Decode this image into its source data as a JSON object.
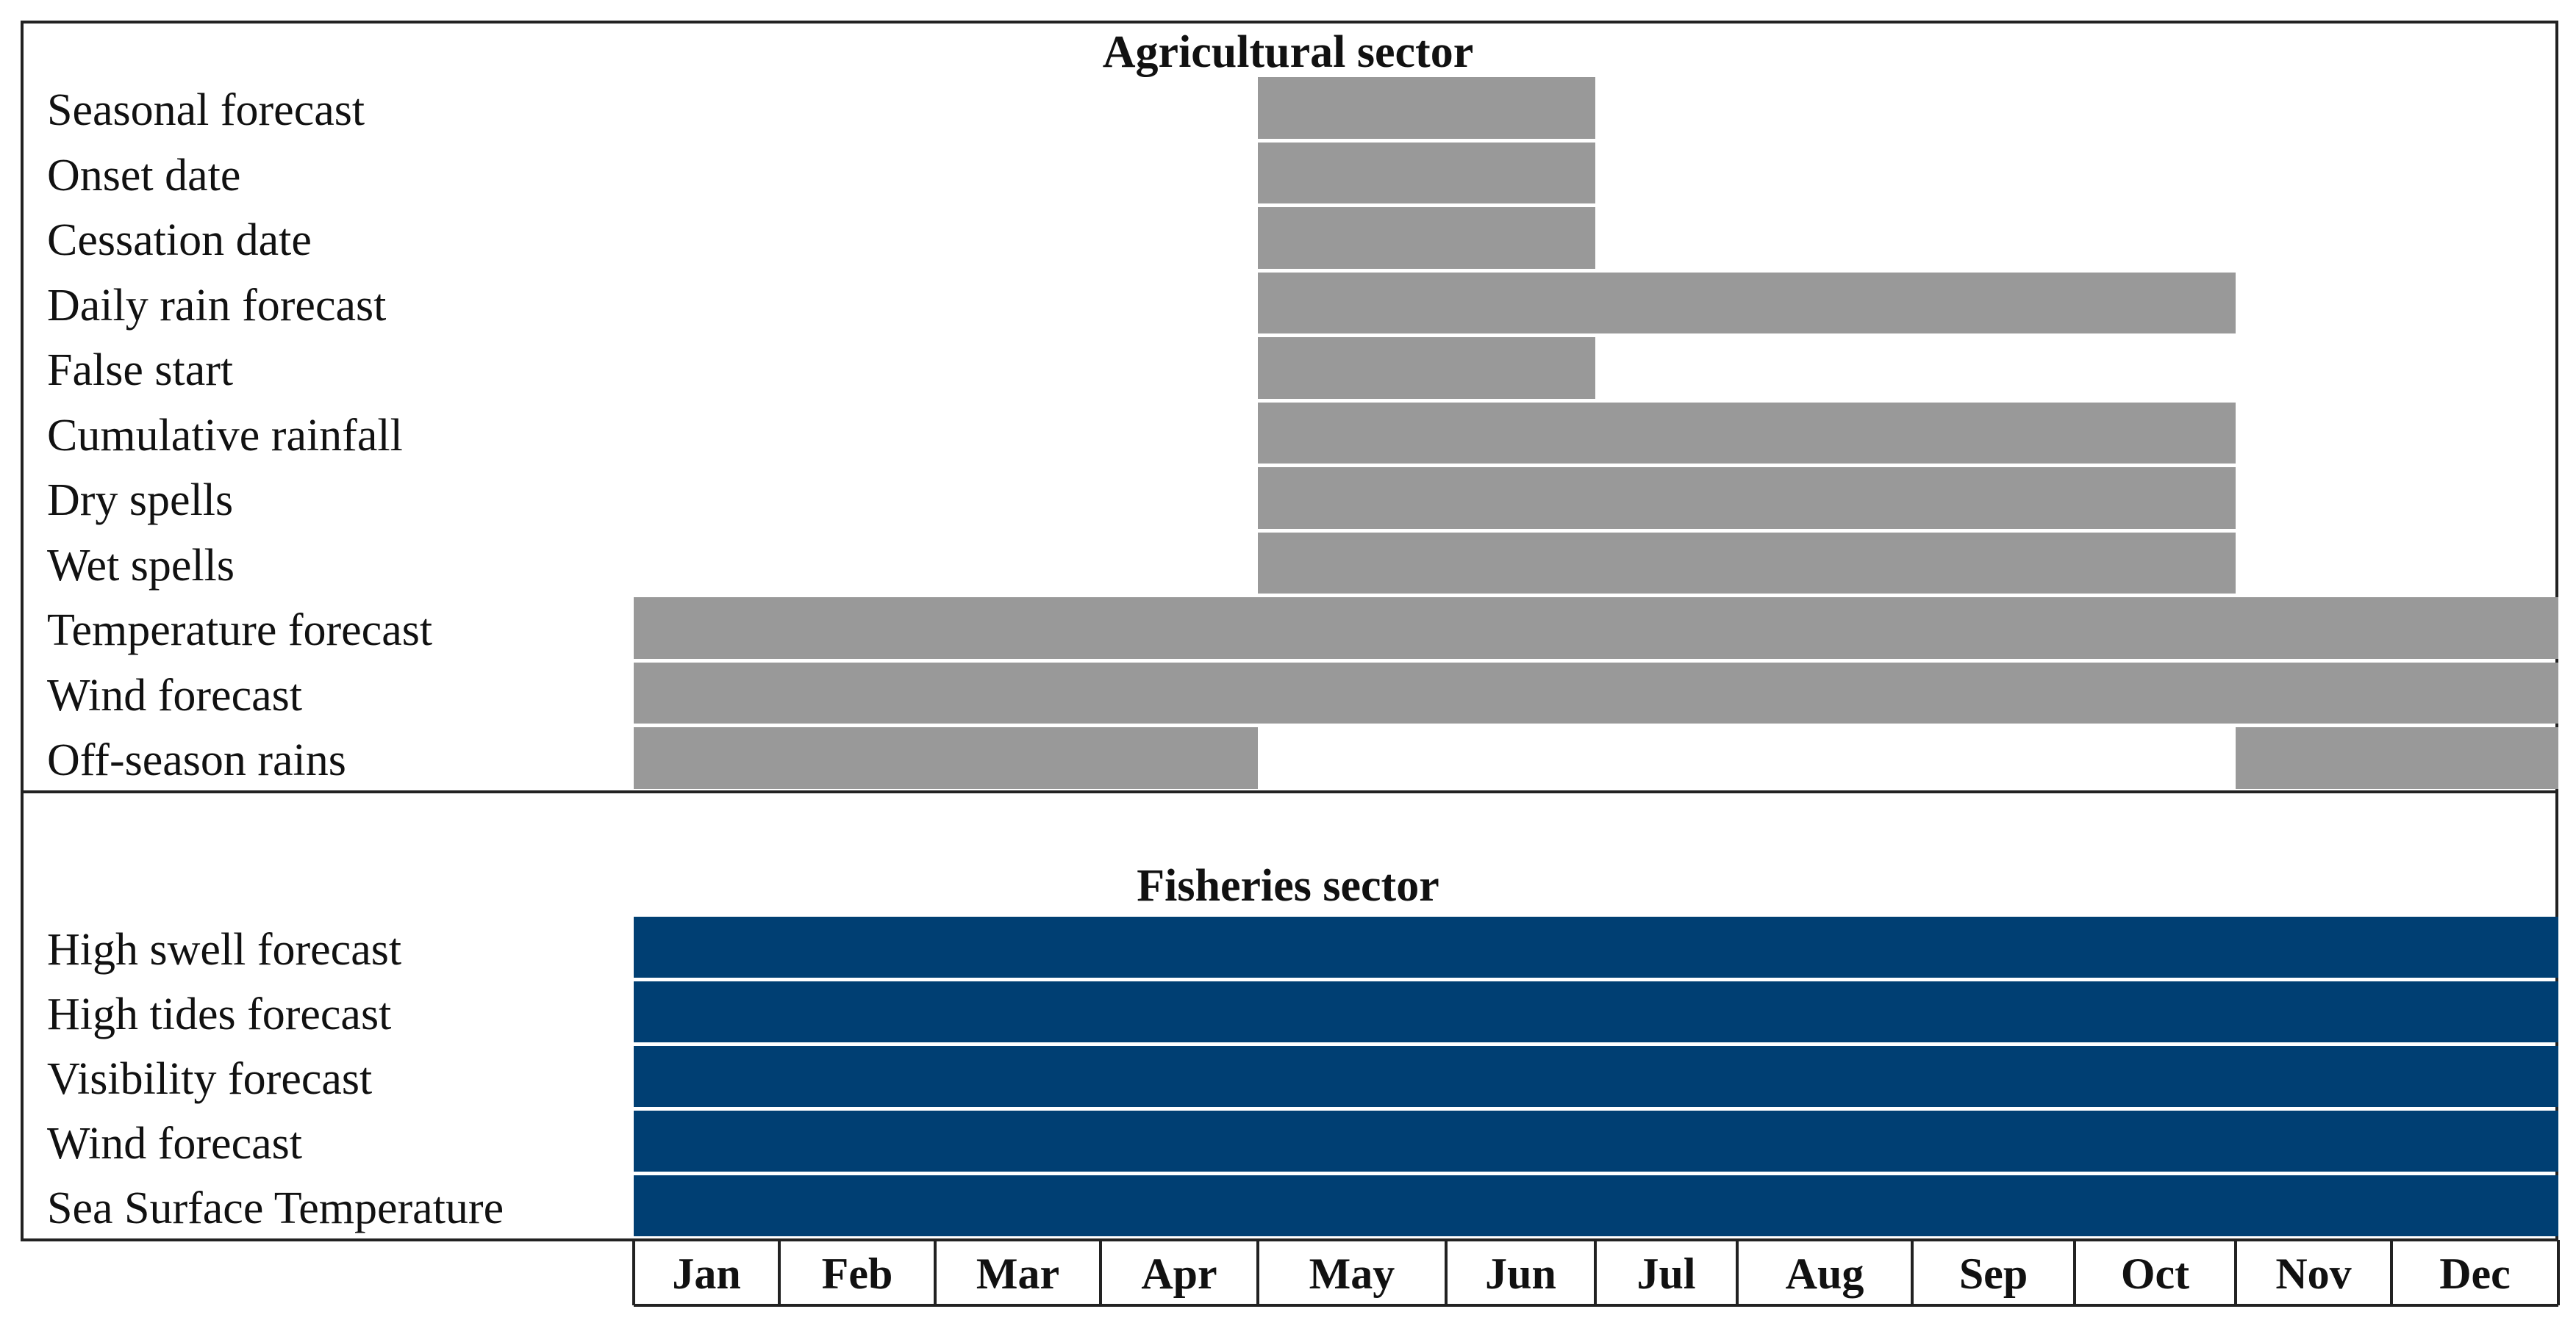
{
  "chart_data": {
    "type": "gantt",
    "months": [
      "Jan",
      "Feb",
      "Mar",
      "Apr",
      "May",
      "Jun",
      "Jul",
      "Aug",
      "Sep",
      "Oct",
      "Nov",
      "Dec"
    ],
    "sections": [
      {
        "title": "Agricultural sector",
        "color": "#999999",
        "rows": [
          {
            "label": "Seasonal forecast",
            "periods": [
              [
                "May",
                "Jun"
              ]
            ]
          },
          {
            "label": "Onset date",
            "periods": [
              [
                "May",
                "Jun"
              ]
            ]
          },
          {
            "label": "Cessation date",
            "periods": [
              [
                "May",
                "Jun"
              ]
            ]
          },
          {
            "label": "Daily rain forecast",
            "periods": [
              [
                "May",
                "Oct"
              ]
            ]
          },
          {
            "label": "False start",
            "periods": [
              [
                "May",
                "Jun"
              ]
            ]
          },
          {
            "label": "Cumulative rainfall",
            "periods": [
              [
                "May",
                "Oct"
              ]
            ]
          },
          {
            "label": "Dry spells",
            "periods": [
              [
                "May",
                "Oct"
              ]
            ]
          },
          {
            "label": "Wet spells",
            "periods": [
              [
                "May",
                "Oct"
              ]
            ]
          },
          {
            "label": "Temperature forecast",
            "periods": [
              [
                "Jan",
                "Dec"
              ]
            ]
          },
          {
            "label": "Wind forecast",
            "periods": [
              [
                "Jan",
                "Dec"
              ]
            ]
          },
          {
            "label": "Off-season rains",
            "periods": [
              [
                "Jan",
                "Apr"
              ],
              [
                "Nov",
                "Dec"
              ]
            ]
          }
        ]
      },
      {
        "title": "Fisheries sector",
        "color": "#003F73",
        "rows": [
          {
            "label": "High swell forecast",
            "periods": [
              [
                "Jan",
                "Dec"
              ]
            ]
          },
          {
            "label": "High tides forecast",
            "periods": [
              [
                "Jan",
                "Dec"
              ]
            ]
          },
          {
            "label": "Visibility forecast",
            "periods": [
              [
                "Jan",
                "Dec"
              ]
            ]
          },
          {
            "label": "Wind forecast",
            "periods": [
              [
                "Jan",
                "Dec"
              ]
            ]
          },
          {
            "label": "Sea Surface Temperature",
            "periods": [
              [
                "Jan",
                "Dec"
              ]
            ]
          }
        ]
      }
    ]
  }
}
